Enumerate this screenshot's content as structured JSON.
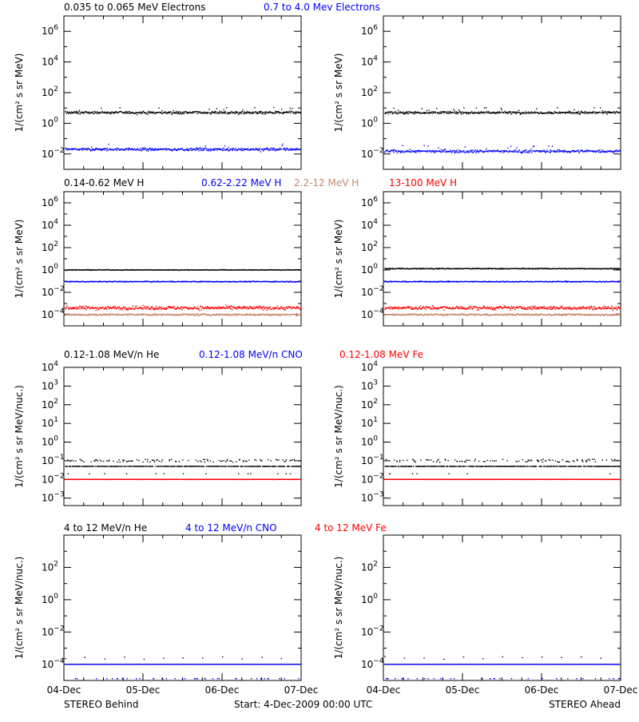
{
  "colors": {
    "black": "#000000",
    "blue": "#0000ff",
    "tan": "#c8866a",
    "red": "#ff0000"
  },
  "footer": {
    "left": "STEREO Behind",
    "center": "Start:  4-Dec-2009 00:00 UTC",
    "right": "STEREO Ahead"
  },
  "chart_data": [
    {
      "type": "scatter",
      "rows": [
        {
          "id": "electrons",
          "ylabel": "1/(cm² s sr MeV)",
          "ylog_range": [
            -3,
            7
          ],
          "tick_exps": [
            -2,
            0,
            2,
            4,
            6
          ],
          "legend": [
            {
              "text": "0.035 to 0.065 MeV Electrons",
              "color": "black"
            },
            {
              "text": "0.7 to 4.0 Mev Electrons",
              "color": "blue"
            }
          ],
          "series": [
            {
              "color": "black",
              "panels": {
                "behind": {
                  "median": 5.0,
                  "scatter": 0.08
                },
                "ahead": {
                  "median": 5.0,
                  "scatter": 0.08
                }
              },
              "outliers": 0.05
            },
            {
              "color": "blue",
              "panels": {
                "behind": {
                  "median": 0.02,
                  "scatter": 0.09
                },
                "ahead": {
                  "median": 0.015,
                  "scatter": 0.09
                }
              },
              "outliers": 0.03
            }
          ]
        },
        {
          "id": "protons",
          "ylabel": "1/(cm² s sr MeV)",
          "ylog_range": [
            -5,
            7
          ],
          "tick_exps": [
            -4,
            -2,
            0,
            2,
            4,
            6
          ],
          "legend": [
            {
              "text": "0.14-0.62 MeV H",
              "color": "black"
            },
            {
              "text": "0.62-2.22 MeV H",
              "color": "blue"
            },
            {
              "text": "2.2-12 MeV H",
              "color": "tan"
            },
            {
              "text": "13-100 MeV H",
              "color": "red"
            }
          ],
          "series": [
            {
              "color": "black",
              "panels": {
                "behind": {
                  "median": 1.0,
                  "scatter": 0.03
                },
                "ahead": {
                  "median": 1.3,
                  "scatter": 0.04
                }
              }
            },
            {
              "color": "blue",
              "panels": {
                "behind": {
                  "median": 0.09,
                  "scatter": 0.04
                },
                "ahead": {
                  "median": 0.09,
                  "scatter": 0.04
                }
              }
            },
            {
              "color": "tan",
              "panels": {
                "behind": {
                  "median": 0.0001,
                  "scatter": 0.08
                },
                "ahead": {
                  "median": 0.0001,
                  "scatter": 0.08
                }
              }
            },
            {
              "color": "red",
              "panels": {
                "behind": {
                  "median": 0.0004,
                  "scatter": 0.16
                },
                "ahead": {
                  "median": 0.0004,
                  "scatter": 0.16
                }
              }
            }
          ]
        },
        {
          "id": "heavy-low",
          "ylabel": "1/(cm² s sr MeV/nuc.)",
          "ylog_range": [
            -3.4,
            4
          ],
          "tick_exps": [
            -3,
            -2,
            -1,
            0,
            1,
            2,
            3,
            4
          ],
          "legend": [
            {
              "text": "0.12-1.08 MeV/n He",
              "color": "black"
            },
            {
              "text": "0.12-1.08 MeV/n CNO",
              "color": "blue"
            },
            {
              "text": "0.12-1.08 MeV Fe",
              "color": "red"
            }
          ],
          "series": [
            {
              "color": "black",
              "panels": {
                "behind": {
                  "median": 0.05,
                  "scatter": 0.005
                },
                "ahead": {
                  "median": 0.05,
                  "scatter": 0.005
                }
              },
              "upper_level": 0.1,
              "lower_level": 0.02
            },
            {
              "color": "blue",
              "panels": {
                "behind": {
                  "median": 0.01,
                  "scatter": 0.004
                },
                "ahead": {
                  "median": 0.01,
                  "scatter": 0.004
                }
              }
            },
            {
              "color": "red",
              "panels": {
                "behind": {
                  "median": 0.01,
                  "scatter": 0.004
                },
                "ahead": {
                  "median": 0.01,
                  "scatter": 0.004
                }
              }
            }
          ]
        },
        {
          "id": "heavy-high",
          "ylabel": "1/(cm² s sr MeV/nuc.)",
          "ylog_range": [
            -5,
            4
          ],
          "tick_exps": [
            -4,
            -2,
            0,
            2
          ],
          "legend": [
            {
              "text": "4 to 12 MeV/n He",
              "color": "black"
            },
            {
              "text": "4 to 12 MeV/n CNO",
              "color": "blue"
            },
            {
              "text": "4 to 12 MeV Fe",
              "color": "red"
            }
          ],
          "series": [
            {
              "color": "blue",
              "panels": {
                "behind": {
                  "median": 0.0001,
                  "scatter": 0.0
                },
                "ahead": {
                  "median": 0.0001,
                  "scatter": 0.0
                }
              },
              "floor": 1e-05
            },
            {
              "color": "black",
              "panels": {
                "behind": {
                  "median": 0.0002,
                  "scatter": 0.0
                },
                "ahead": {
                  "median": 0.0002,
                  "scatter": 0.0
                }
              },
              "sparse": true
            }
          ]
        }
      ],
      "x_ticks": [
        "04-Dec",
        "05-Dec",
        "06-Dec",
        "07-Dec"
      ],
      "x_range_days": [
        0,
        3
      ]
    }
  ]
}
